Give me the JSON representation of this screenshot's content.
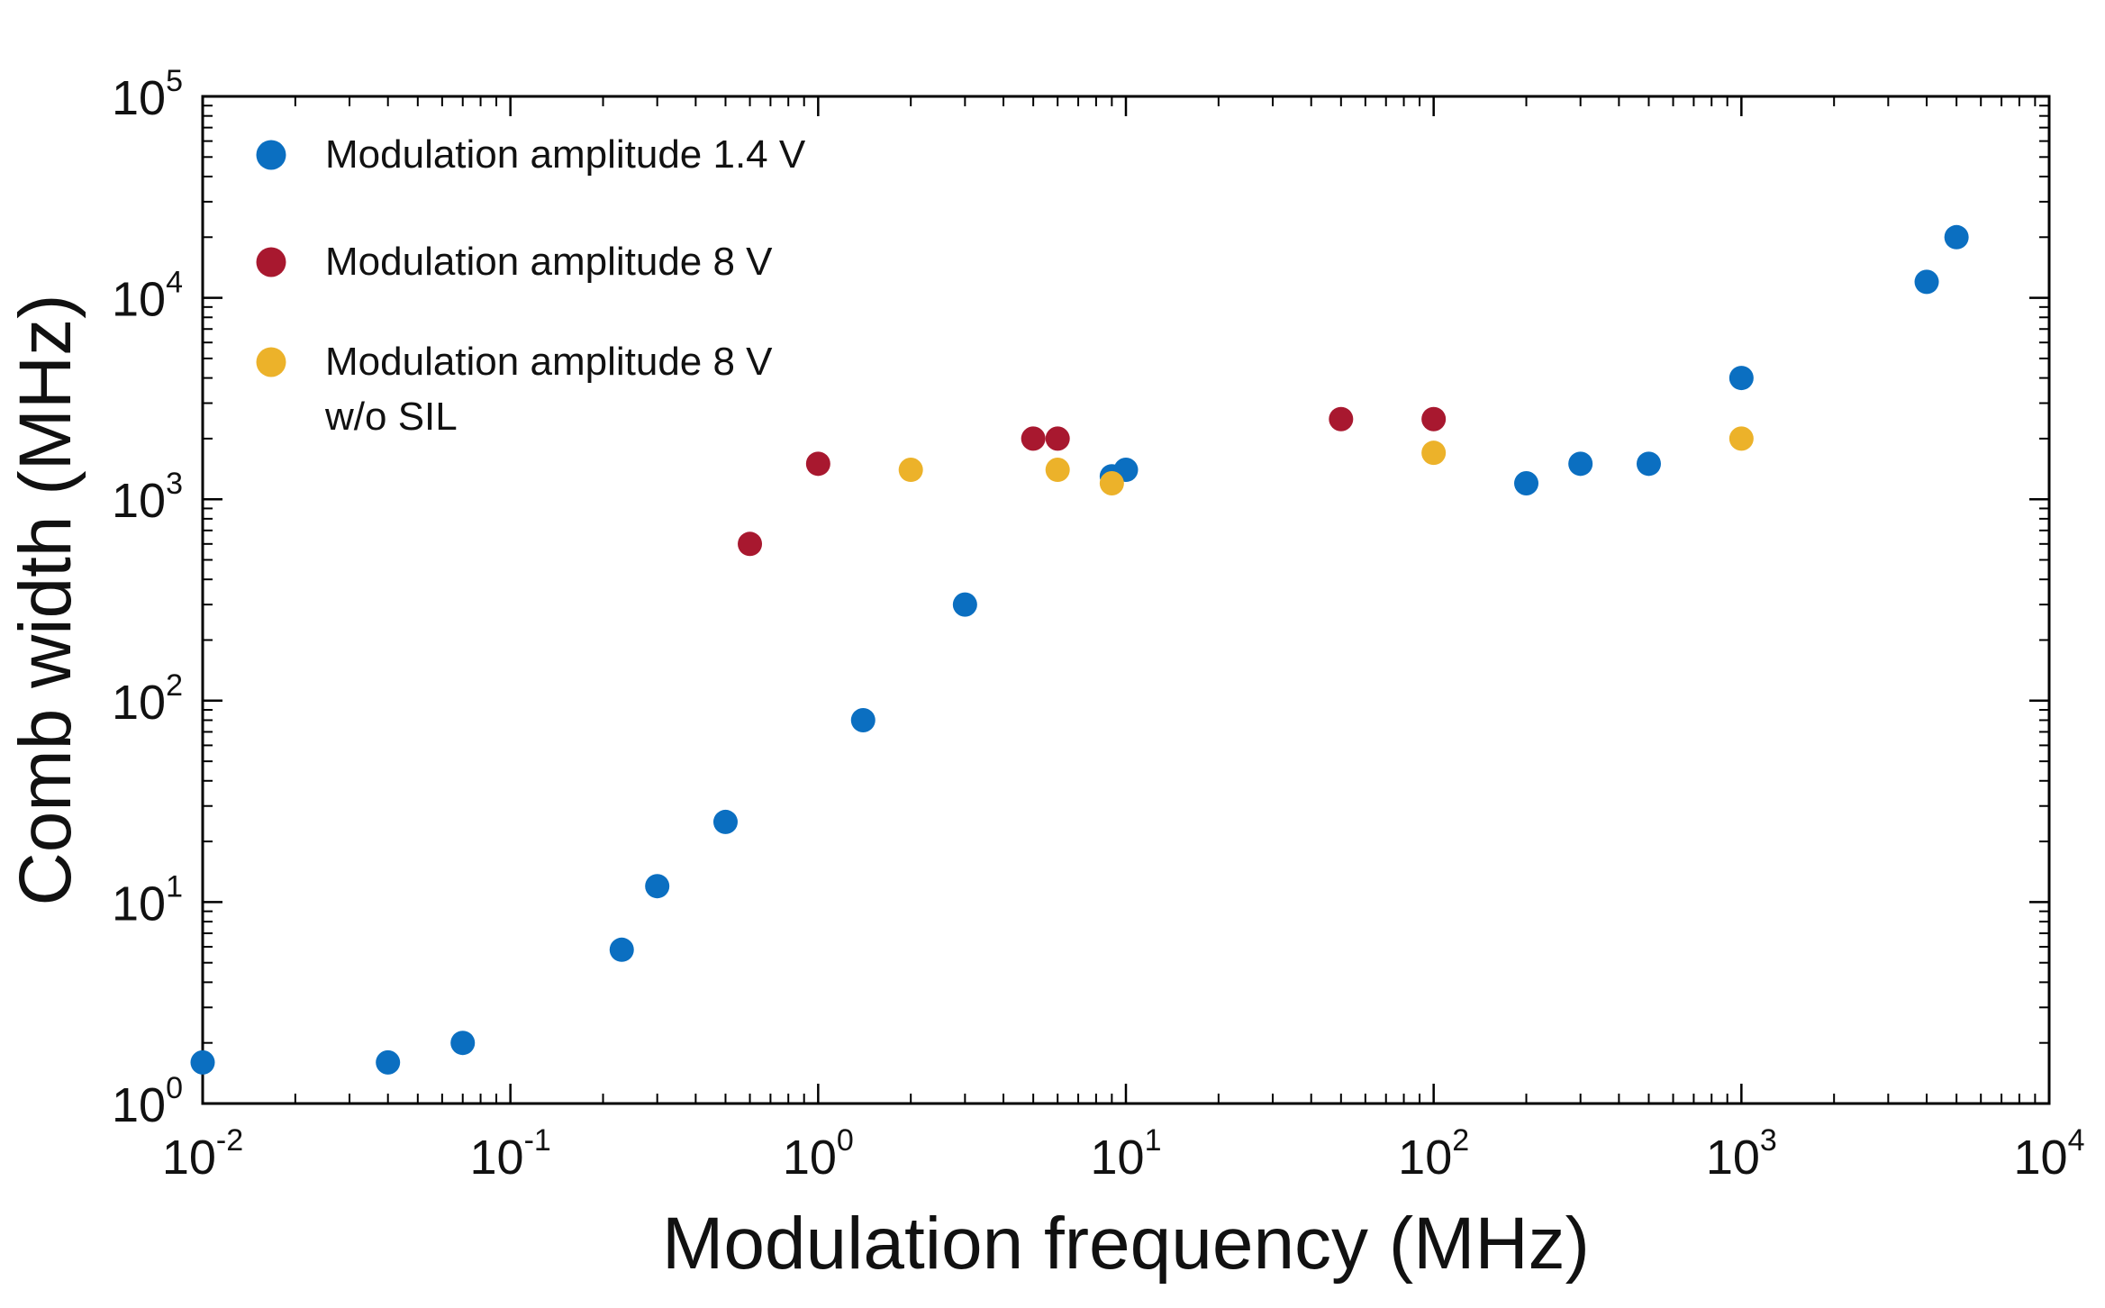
{
  "chart_data": {
    "type": "scatter",
    "xscale": "log",
    "yscale": "log",
    "xlabel": "Modulation frequency (MHz)",
    "ylabel": "Comb width (MHz)",
    "xlim": [
      0.01,
      10000
    ],
    "ylim": [
      1,
      100000
    ],
    "grid": false,
    "legend_position": "top-left",
    "xticks": [
      {
        "base": "10",
        "exp": "-2",
        "value": 0.01
      },
      {
        "base": "10",
        "exp": "-1",
        "value": 0.1
      },
      {
        "base": "10",
        "exp": "0",
        "value": 1
      },
      {
        "base": "10",
        "exp": "1",
        "value": 10
      },
      {
        "base": "10",
        "exp": "2",
        "value": 100
      },
      {
        "base": "10",
        "exp": "3",
        "value": 1000
      },
      {
        "base": "10",
        "exp": "4",
        "value": 10000
      }
    ],
    "yticks": [
      {
        "base": "10",
        "exp": "0",
        "value": 1
      },
      {
        "base": "10",
        "exp": "1",
        "value": 10
      },
      {
        "base": "10",
        "exp": "2",
        "value": 100
      },
      {
        "base": "10",
        "exp": "3",
        "value": 1000
      },
      {
        "base": "10",
        "exp": "4",
        "value": 10000
      },
      {
        "base": "10",
        "exp": "5",
        "value": 100000
      }
    ],
    "series": [
      {
        "name": "Modulation amplitude 1.4 V",
        "label_lines": [
          "Modulation amplitude 1.4 V"
        ],
        "color": "#0b6fc1",
        "x": [
          0.01,
          0.04,
          0.07,
          0.23,
          0.3,
          0.5,
          1.4,
          3,
          9,
          10,
          200,
          300,
          500,
          1000,
          4000,
          5000
        ],
        "y": [
          1.6,
          1.6,
          2.0,
          5.8,
          12,
          25,
          80,
          300,
          1300,
          1400,
          1200,
          1500,
          1500,
          4000,
          12000,
          20000
        ]
      },
      {
        "name": "Modulation amplitude 8 V",
        "label_lines": [
          "Modulation amplitude 8 V"
        ],
        "color": "#a8182f",
        "x": [
          0.6,
          1,
          5,
          6,
          50,
          100
        ],
        "y": [
          600,
          1500,
          2000,
          2000,
          2500,
          2500
        ]
      },
      {
        "name": "Modulation amplitude 8 V w/o SIL",
        "label_lines": [
          "Modulation amplitude 8 V",
          "w/o SIL"
        ],
        "color": "#ecb22a",
        "x": [
          2,
          6,
          9,
          100,
          1000
        ],
        "y": [
          1400,
          1400,
          1200,
          1700,
          2000
        ]
      }
    ]
  }
}
